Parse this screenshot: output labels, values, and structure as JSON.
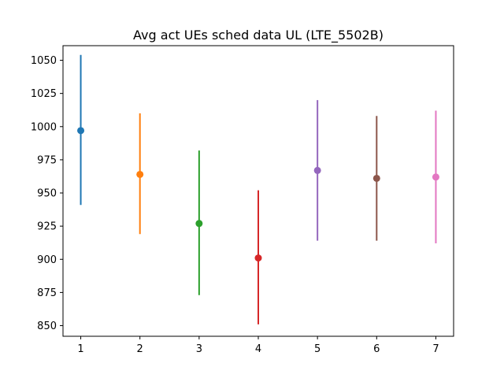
{
  "chart_data": {
    "type": "scatter",
    "title": "Avg act UEs sched data UL (LTE_5502B)",
    "xlabel": "",
    "ylabel": "",
    "xlim": [
      0.7,
      7.3
    ],
    "ylim": [
      842,
      1061
    ],
    "xticks": [
      1,
      2,
      3,
      4,
      5,
      6,
      7
    ],
    "yticks": [
      850,
      875,
      900,
      925,
      950,
      975,
      1000,
      1025,
      1050
    ],
    "grid": false,
    "points": [
      {
        "x": 1,
        "y": 997,
        "low": 941,
        "high": 1054,
        "color": "#1f77b4"
      },
      {
        "x": 2,
        "y": 964,
        "low": 919,
        "high": 1010,
        "color": "#ff7f0e"
      },
      {
        "x": 3,
        "y": 927,
        "low": 873,
        "high": 982,
        "color": "#2ca02c"
      },
      {
        "x": 4,
        "y": 901,
        "low": 851,
        "high": 952,
        "color": "#d62728"
      },
      {
        "x": 5,
        "y": 967,
        "low": 914,
        "high": 1020,
        "color": "#9467bd"
      },
      {
        "x": 6,
        "y": 961,
        "low": 914,
        "high": 1008,
        "color": "#8c564b"
      },
      {
        "x": 7,
        "y": 962,
        "low": 912,
        "high": 1012,
        "color": "#e377c2"
      }
    ]
  }
}
